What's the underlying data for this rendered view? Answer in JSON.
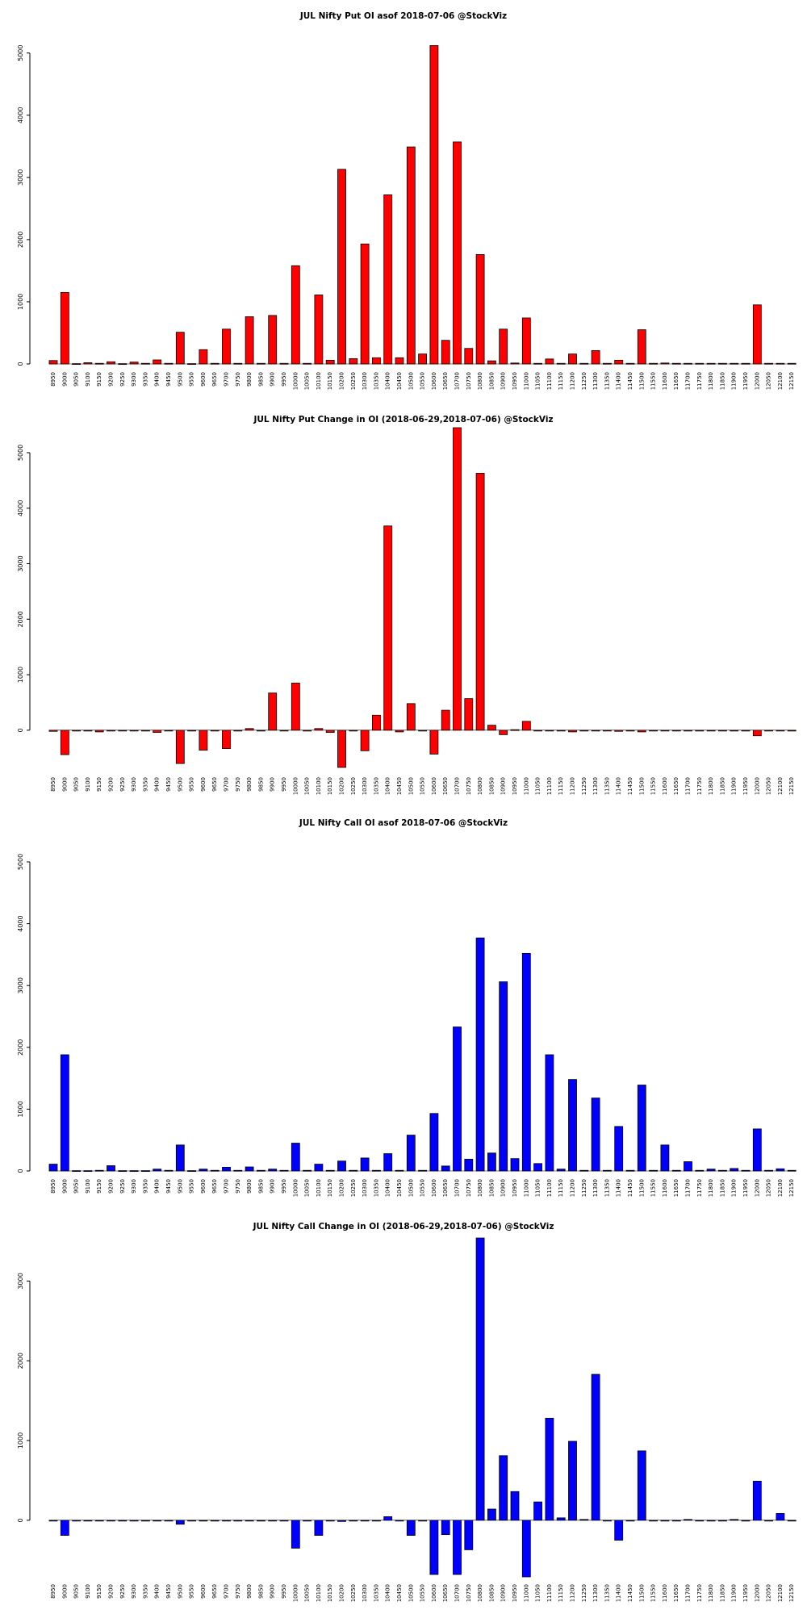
{
  "chart_data": [
    {
      "type": "bar",
      "title": "JUL Nifty Put OI asof 2018-07-06 @StockViz",
      "color": "#ff0000",
      "ylim": [
        0,
        5100
      ],
      "yticks": [
        0,
        1000,
        2000,
        3000,
        4000,
        5000
      ],
      "categories": [
        "8950",
        "9000",
        "9050",
        "9100",
        "9150",
        "9200",
        "9250",
        "9300",
        "9350",
        "9400",
        "9450",
        "9500",
        "9550",
        "9600",
        "9650",
        "9700",
        "9750",
        "9800",
        "9850",
        "9900",
        "9950",
        "10000",
        "10050",
        "10100",
        "10150",
        "10200",
        "10250",
        "10300",
        "10350",
        "10400",
        "10450",
        "10500",
        "10550",
        "10600",
        "10650",
        "10700",
        "10750",
        "10800",
        "10850",
        "10900",
        "10950",
        "11000",
        "11050",
        "11100",
        "11150",
        "11200",
        "11250",
        "11300",
        "11350",
        "11400",
        "11450",
        "11500",
        "11550",
        "11600",
        "11650",
        "11700",
        "11750",
        "11800",
        "11850",
        "11900",
        "11950",
        "12000",
        "12050",
        "12100",
        "12150"
      ],
      "values": [
        55,
        1150,
        5,
        20,
        10,
        35,
        5,
        30,
        10,
        65,
        10,
        510,
        5,
        230,
        10,
        560,
        10,
        760,
        10,
        780,
        10,
        1580,
        10,
        1110,
        60,
        3130,
        85,
        1930,
        100,
        2720,
        100,
        3490,
        160,
        5120,
        380,
        3570,
        250,
        1760,
        50,
        560,
        15,
        740,
        10,
        80,
        10,
        160,
        10,
        215,
        10,
        60,
        10,
        550,
        10,
        15,
        10,
        10,
        10,
        10,
        10,
        10,
        10,
        950,
        10,
        10,
        10
      ]
    },
    {
      "type": "bar",
      "title": "JUL Nifty Put Change in OI (2018-06-29,2018-07-06) @StockViz",
      "color": "#ff0000",
      "ylim": [
        -700,
        5450
      ],
      "yticks": [
        0,
        1000,
        2000,
        3000,
        4000,
        5000
      ],
      "categories": [
        "8950",
        "9000",
        "9050",
        "9100",
        "9150",
        "9200",
        "9250",
        "9300",
        "9350",
        "9400",
        "9450",
        "9500",
        "9550",
        "9600",
        "9650",
        "9700",
        "9750",
        "9800",
        "9850",
        "9900",
        "9950",
        "10000",
        "10050",
        "10100",
        "10150",
        "10200",
        "10250",
        "10300",
        "10350",
        "10400",
        "10450",
        "10500",
        "10550",
        "10600",
        "10650",
        "10700",
        "10750",
        "10800",
        "10850",
        "10900",
        "10950",
        "11000",
        "11050",
        "11100",
        "11150",
        "11200",
        "11250",
        "11300",
        "11350",
        "11400",
        "11450",
        "11500",
        "11550",
        "11600",
        "11650",
        "11700",
        "11750",
        "11800",
        "11850",
        "11900",
        "11950",
        "12000",
        "12050",
        "12100",
        "12150"
      ],
      "values": [
        -20,
        -440,
        -5,
        -5,
        -30,
        -5,
        -5,
        -5,
        -5,
        -40,
        -5,
        -600,
        -5,
        -360,
        -5,
        -330,
        -5,
        30,
        -5,
        670,
        -5,
        850,
        -15,
        30,
        -40,
        -670,
        -5,
        -370,
        270,
        3680,
        -30,
        480,
        -5,
        -430,
        360,
        5450,
        570,
        4630,
        90,
        -80,
        10,
        160,
        -5,
        -5,
        -5,
        -30,
        -5,
        -5,
        -5,
        -20,
        -5,
        -30,
        -5,
        -5,
        -5,
        -5,
        -5,
        -5,
        -5,
        -5,
        -5,
        -100,
        -5,
        -5,
        -5
      ]
    },
    {
      "type": "bar",
      "title": "JUL Nifty Call OI asof 2018-07-06 @StockViz",
      "color": "#0000ff",
      "ylim": [
        0,
        5000
      ],
      "yticks": [
        0,
        1000,
        2000,
        3000,
        4000,
        5000
      ],
      "categories": [
        "8950",
        "9000",
        "9050",
        "9100",
        "9150",
        "9200",
        "9250",
        "9300",
        "9350",
        "9400",
        "9450",
        "9500",
        "9550",
        "9600",
        "9650",
        "9700",
        "9750",
        "9800",
        "9850",
        "9900",
        "9950",
        "10000",
        "10050",
        "10100",
        "10150",
        "10200",
        "10250",
        "10300",
        "10350",
        "10400",
        "10450",
        "10500",
        "10550",
        "10600",
        "10650",
        "10700",
        "10750",
        "10800",
        "10850",
        "10900",
        "10950",
        "11000",
        "11050",
        "11100",
        "11150",
        "11200",
        "11250",
        "11300",
        "11350",
        "11400",
        "11450",
        "11500",
        "11550",
        "11600",
        "11650",
        "11700",
        "11750",
        "11800",
        "11850",
        "11900",
        "11950",
        "12000",
        "12050",
        "12100",
        "12150"
      ],
      "values": [
        110,
        1880,
        5,
        5,
        10,
        85,
        5,
        5,
        5,
        30,
        10,
        420,
        5,
        30,
        10,
        60,
        10,
        65,
        10,
        30,
        10,
        450,
        10,
        110,
        10,
        160,
        10,
        210,
        10,
        280,
        10,
        580,
        10,
        930,
        80,
        2330,
        190,
        3770,
        290,
        3060,
        200,
        3520,
        120,
        1880,
        30,
        1480,
        10,
        1180,
        10,
        720,
        10,
        1390,
        10,
        420,
        10,
        150,
        10,
        30,
        10,
        40,
        10,
        680,
        10,
        35,
        10
      ]
    },
    {
      "type": "bar",
      "title": "JUL Nifty Call Change in OI (2018-06-29,2018-07-06) @StockViz",
      "color": "#0000ff",
      "ylim": [
        -700,
        3500
      ],
      "yticks": [
        0,
        1000,
        2000,
        3000
      ],
      "categories": [
        "8950",
        "9000",
        "9050",
        "9100",
        "9150",
        "9200",
        "9250",
        "9300",
        "9350",
        "9400",
        "9450",
        "9500",
        "9550",
        "9600",
        "9650",
        "9700",
        "9750",
        "9800",
        "9850",
        "9900",
        "9950",
        "10000",
        "10050",
        "10100",
        "10150",
        "10200",
        "10250",
        "10300",
        "10350",
        "10400",
        "10450",
        "10500",
        "10550",
        "10600",
        "10650",
        "10700",
        "10750",
        "10800",
        "10850",
        "10900",
        "10950",
        "11000",
        "11050",
        "11100",
        "11150",
        "11200",
        "11250",
        "11300",
        "11350",
        "11400",
        "11450",
        "11500",
        "11550",
        "11600",
        "11650",
        "11700",
        "11750",
        "11800",
        "11850",
        "11900",
        "11950",
        "12000",
        "12050",
        "12100",
        "12150"
      ],
      "values": [
        -5,
        -190,
        -5,
        -5,
        -5,
        -5,
        -5,
        -5,
        -5,
        -5,
        -5,
        -50,
        -5,
        -5,
        -5,
        -5,
        -5,
        -5,
        -5,
        -5,
        -5,
        -350,
        -5,
        -190,
        -5,
        -15,
        -5,
        -5,
        -5,
        45,
        -5,
        -190,
        -5,
        -680,
        -180,
        -680,
        -370,
        3540,
        140,
        810,
        360,
        -710,
        230,
        1280,
        30,
        990,
        10,
        1830,
        -5,
        -250,
        -5,
        870,
        -5,
        -5,
        -5,
        10,
        -5,
        -5,
        -5,
        10,
        -5,
        490,
        -5,
        85,
        -5
      ]
    }
  ]
}
